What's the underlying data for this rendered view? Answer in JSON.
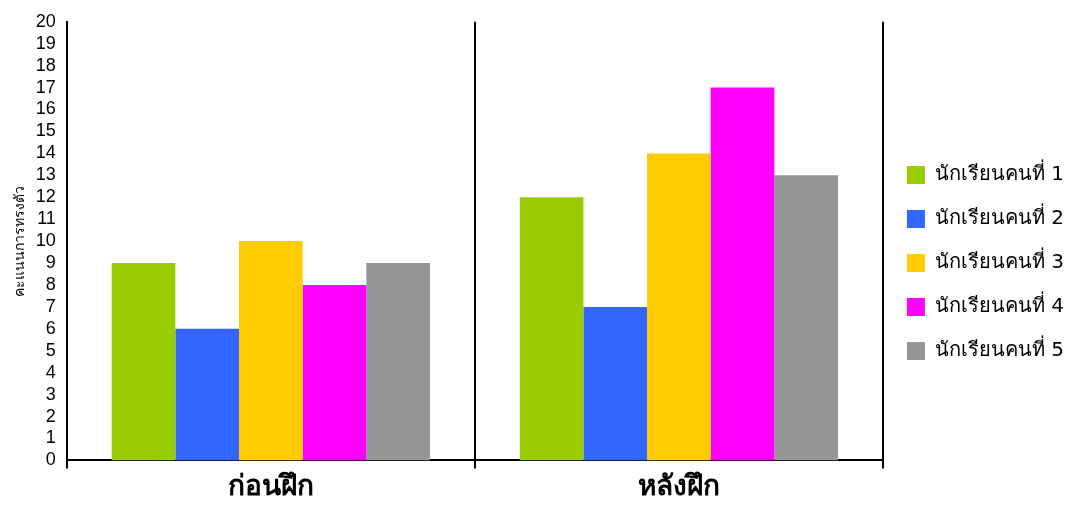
{
  "chart_data": {
    "type": "bar",
    "ylabel": "คะแนนการทรงตัว",
    "categories": [
      "ก่อนฝึก",
      "หลังฝึก"
    ],
    "series": [
      {
        "name": "นักเรียนคนที่ 1",
        "color": "#99cc00",
        "values": [
          9,
          12
        ]
      },
      {
        "name": "นักเรียนคนที่ 2",
        "color": "#3366ff",
        "values": [
          6,
          7
        ]
      },
      {
        "name": "นักเรียนคนที่ 3",
        "color": "#ffcc00",
        "values": [
          10,
          14
        ]
      },
      {
        "name": "นักเรียนคนที่ 4",
        "color": "#ff00ff",
        "values": [
          8,
          17
        ]
      },
      {
        "name": "นักเรียนคนที่ 5",
        "color": "#969696",
        "values": [
          9,
          13
        ]
      }
    ],
    "ylim": [
      0,
      20
    ],
    "yticks": [
      0,
      1,
      2,
      3,
      4,
      5,
      6,
      7,
      8,
      9,
      10,
      11,
      12,
      13,
      14,
      15,
      16,
      17,
      18,
      19,
      20
    ],
    "grid": "x",
    "legend": "right"
  }
}
